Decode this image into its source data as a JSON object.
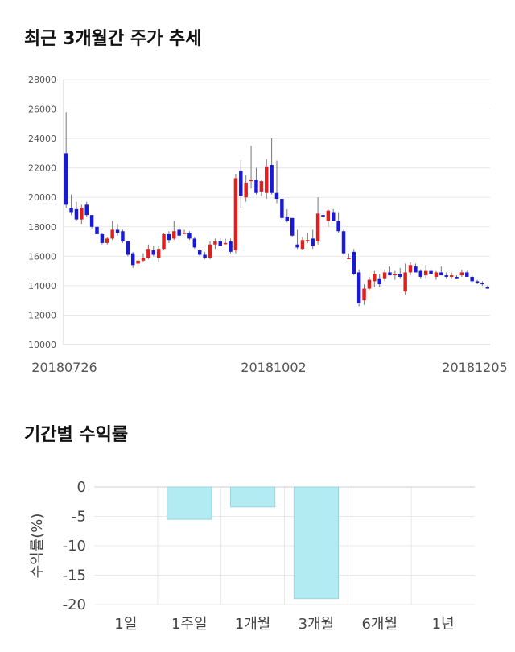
{
  "page": {
    "section1_title": "최근 3개월간 주가 추세",
    "section2_title": "기간별 수익률"
  },
  "colors": {
    "up": "#e01f1f",
    "down": "#1a1ad6",
    "bar": "#b2ebf2",
    "grid": "#e8e8e8"
  },
  "chart_data": [
    {
      "type": "candlestick",
      "title": "최근 3개월간 주가 추세",
      "ylim": [
        10000,
        28000
      ],
      "y_ticks": [
        10000,
        12000,
        14000,
        16000,
        18000,
        20000,
        22000,
        24000,
        26000,
        28000
      ],
      "x_tick_labels": [
        "20180726",
        "20181002",
        "20181205"
      ],
      "grid": true,
      "candles": [
        [
          23000,
          25800,
          19300,
          19500
        ],
        [
          19300,
          20200,
          18800,
          19000
        ],
        [
          19200,
          19700,
          18400,
          18500
        ],
        [
          18500,
          19500,
          18200,
          19300
        ],
        [
          19500,
          19700,
          18700,
          18800
        ],
        [
          18800,
          18800,
          17900,
          18000
        ],
        [
          18000,
          18100,
          17400,
          17500
        ],
        [
          17500,
          17600,
          16800,
          16900
        ],
        [
          16900,
          17300,
          16800,
          17200
        ],
        [
          17200,
          18400,
          17100,
          17800
        ],
        [
          17800,
          18200,
          17400,
          17600
        ],
        [
          17700,
          17800,
          16900,
          17000
        ],
        [
          17000,
          17000,
          16000,
          16100
        ],
        [
          16200,
          16300,
          15200,
          15400
        ],
        [
          15500,
          15800,
          15300,
          15700
        ],
        [
          15700,
          16200,
          15600,
          15900
        ],
        [
          15900,
          16800,
          15800,
          16500
        ],
        [
          16400,
          16700,
          16000,
          16100
        ],
        [
          15900,
          16700,
          15600,
          16500
        ],
        [
          16500,
          17600,
          16400,
          17500
        ],
        [
          17500,
          17700,
          16900,
          17100
        ],
        [
          17200,
          18400,
          17100,
          17700
        ],
        [
          17800,
          18000,
          17300,
          17400
        ],
        [
          17600,
          17800,
          17500,
          17600
        ],
        [
          17600,
          17700,
          17100,
          17200
        ],
        [
          17200,
          17300,
          16500,
          16600
        ],
        [
          16400,
          16500,
          16000,
          16100
        ],
        [
          16100,
          16300,
          15800,
          15900
        ],
        [
          15900,
          17000,
          15800,
          16800
        ],
        [
          16800,
          17200,
          16500,
          17000
        ],
        [
          17000,
          17200,
          16700,
          16700
        ],
        [
          16900,
          17200,
          16800,
          16900
        ],
        [
          17000,
          17200,
          16200,
          16300
        ],
        [
          16400,
          21600,
          16200,
          21300
        ],
        [
          21800,
          22500,
          19300,
          20100
        ],
        [
          20000,
          21500,
          19700,
          21000
        ],
        [
          21100,
          23500,
          20600,
          21200
        ],
        [
          21200,
          22000,
          20200,
          20300
        ],
        [
          20400,
          21200,
          20100,
          21100
        ],
        [
          20300,
          22600,
          19900,
          22100
        ],
        [
          22200,
          24000,
          20200,
          20300
        ],
        [
          20300,
          22500,
          19600,
          19900
        ],
        [
          19900,
          19900,
          18500,
          18600
        ],
        [
          18700,
          19200,
          18300,
          18400
        ],
        [
          18600,
          18600,
          17300,
          17400
        ],
        [
          16800,
          17800,
          16500,
          16600
        ],
        [
          16500,
          17300,
          16400,
          17100
        ],
        [
          17000,
          17600,
          16900,
          17100
        ],
        [
          17200,
          17800,
          16500,
          16700
        ],
        [
          17000,
          20000,
          16800,
          18900
        ],
        [
          18800,
          19400,
          18100,
          18700
        ],
        [
          18400,
          19200,
          18000,
          19100
        ],
        [
          19000,
          19200,
          18400,
          18400
        ],
        [
          18400,
          19000,
          17600,
          17700
        ],
        [
          17700,
          17800,
          16100,
          16200
        ],
        [
          15800,
          16200,
          15800,
          15900
        ],
        [
          16300,
          16500,
          14700,
          14800
        ],
        [
          14900,
          15100,
          12600,
          12800
        ],
        [
          13000,
          14100,
          12700,
          13800
        ],
        [
          13800,
          14600,
          13700,
          14400
        ],
        [
          14300,
          15000,
          13900,
          14800
        ],
        [
          14500,
          14800,
          13900,
          14100
        ],
        [
          14500,
          15100,
          14300,
          14900
        ],
        [
          14900,
          15300,
          14700,
          14700
        ],
        [
          14700,
          15000,
          14400,
          14800
        ],
        [
          14800,
          15200,
          14500,
          14600
        ],
        [
          13600,
          15500,
          13400,
          14900
        ],
        [
          14900,
          15600,
          14700,
          15400
        ],
        [
          15300,
          15500,
          14900,
          14900
        ],
        [
          15000,
          15100,
          14500,
          14600
        ],
        [
          14700,
          15400,
          14500,
          15000
        ],
        [
          15000,
          15200,
          14800,
          14800
        ],
        [
          14600,
          15000,
          14400,
          14900
        ],
        [
          14900,
          15300,
          14700,
          14700
        ],
        [
          14700,
          14900,
          14500,
          14600
        ],
        [
          14600,
          14900,
          14500,
          14700
        ],
        [
          14600,
          14700,
          14500,
          14500
        ],
        [
          14700,
          15100,
          14600,
          14900
        ],
        [
          14900,
          15000,
          14600,
          14600
        ],
        [
          14600,
          14700,
          14200,
          14300
        ],
        [
          14300,
          14400,
          14100,
          14200
        ],
        [
          14200,
          14300,
          14000,
          14100
        ],
        [
          13900,
          14000,
          13800,
          13800
        ]
      ]
    },
    {
      "type": "bar",
      "title": "기간별 수익률",
      "ylabel": "수익률(%)",
      "ylim": [
        -20,
        0
      ],
      "y_ticks": [
        0,
        -5,
        -10,
        -15,
        -20
      ],
      "categories": [
        "1일",
        "1주일",
        "1개월",
        "3개월",
        "6개월",
        "1년"
      ],
      "values": [
        0,
        -5.5,
        -3.4,
        -19.0,
        0,
        0
      ],
      "grid": true
    }
  ]
}
